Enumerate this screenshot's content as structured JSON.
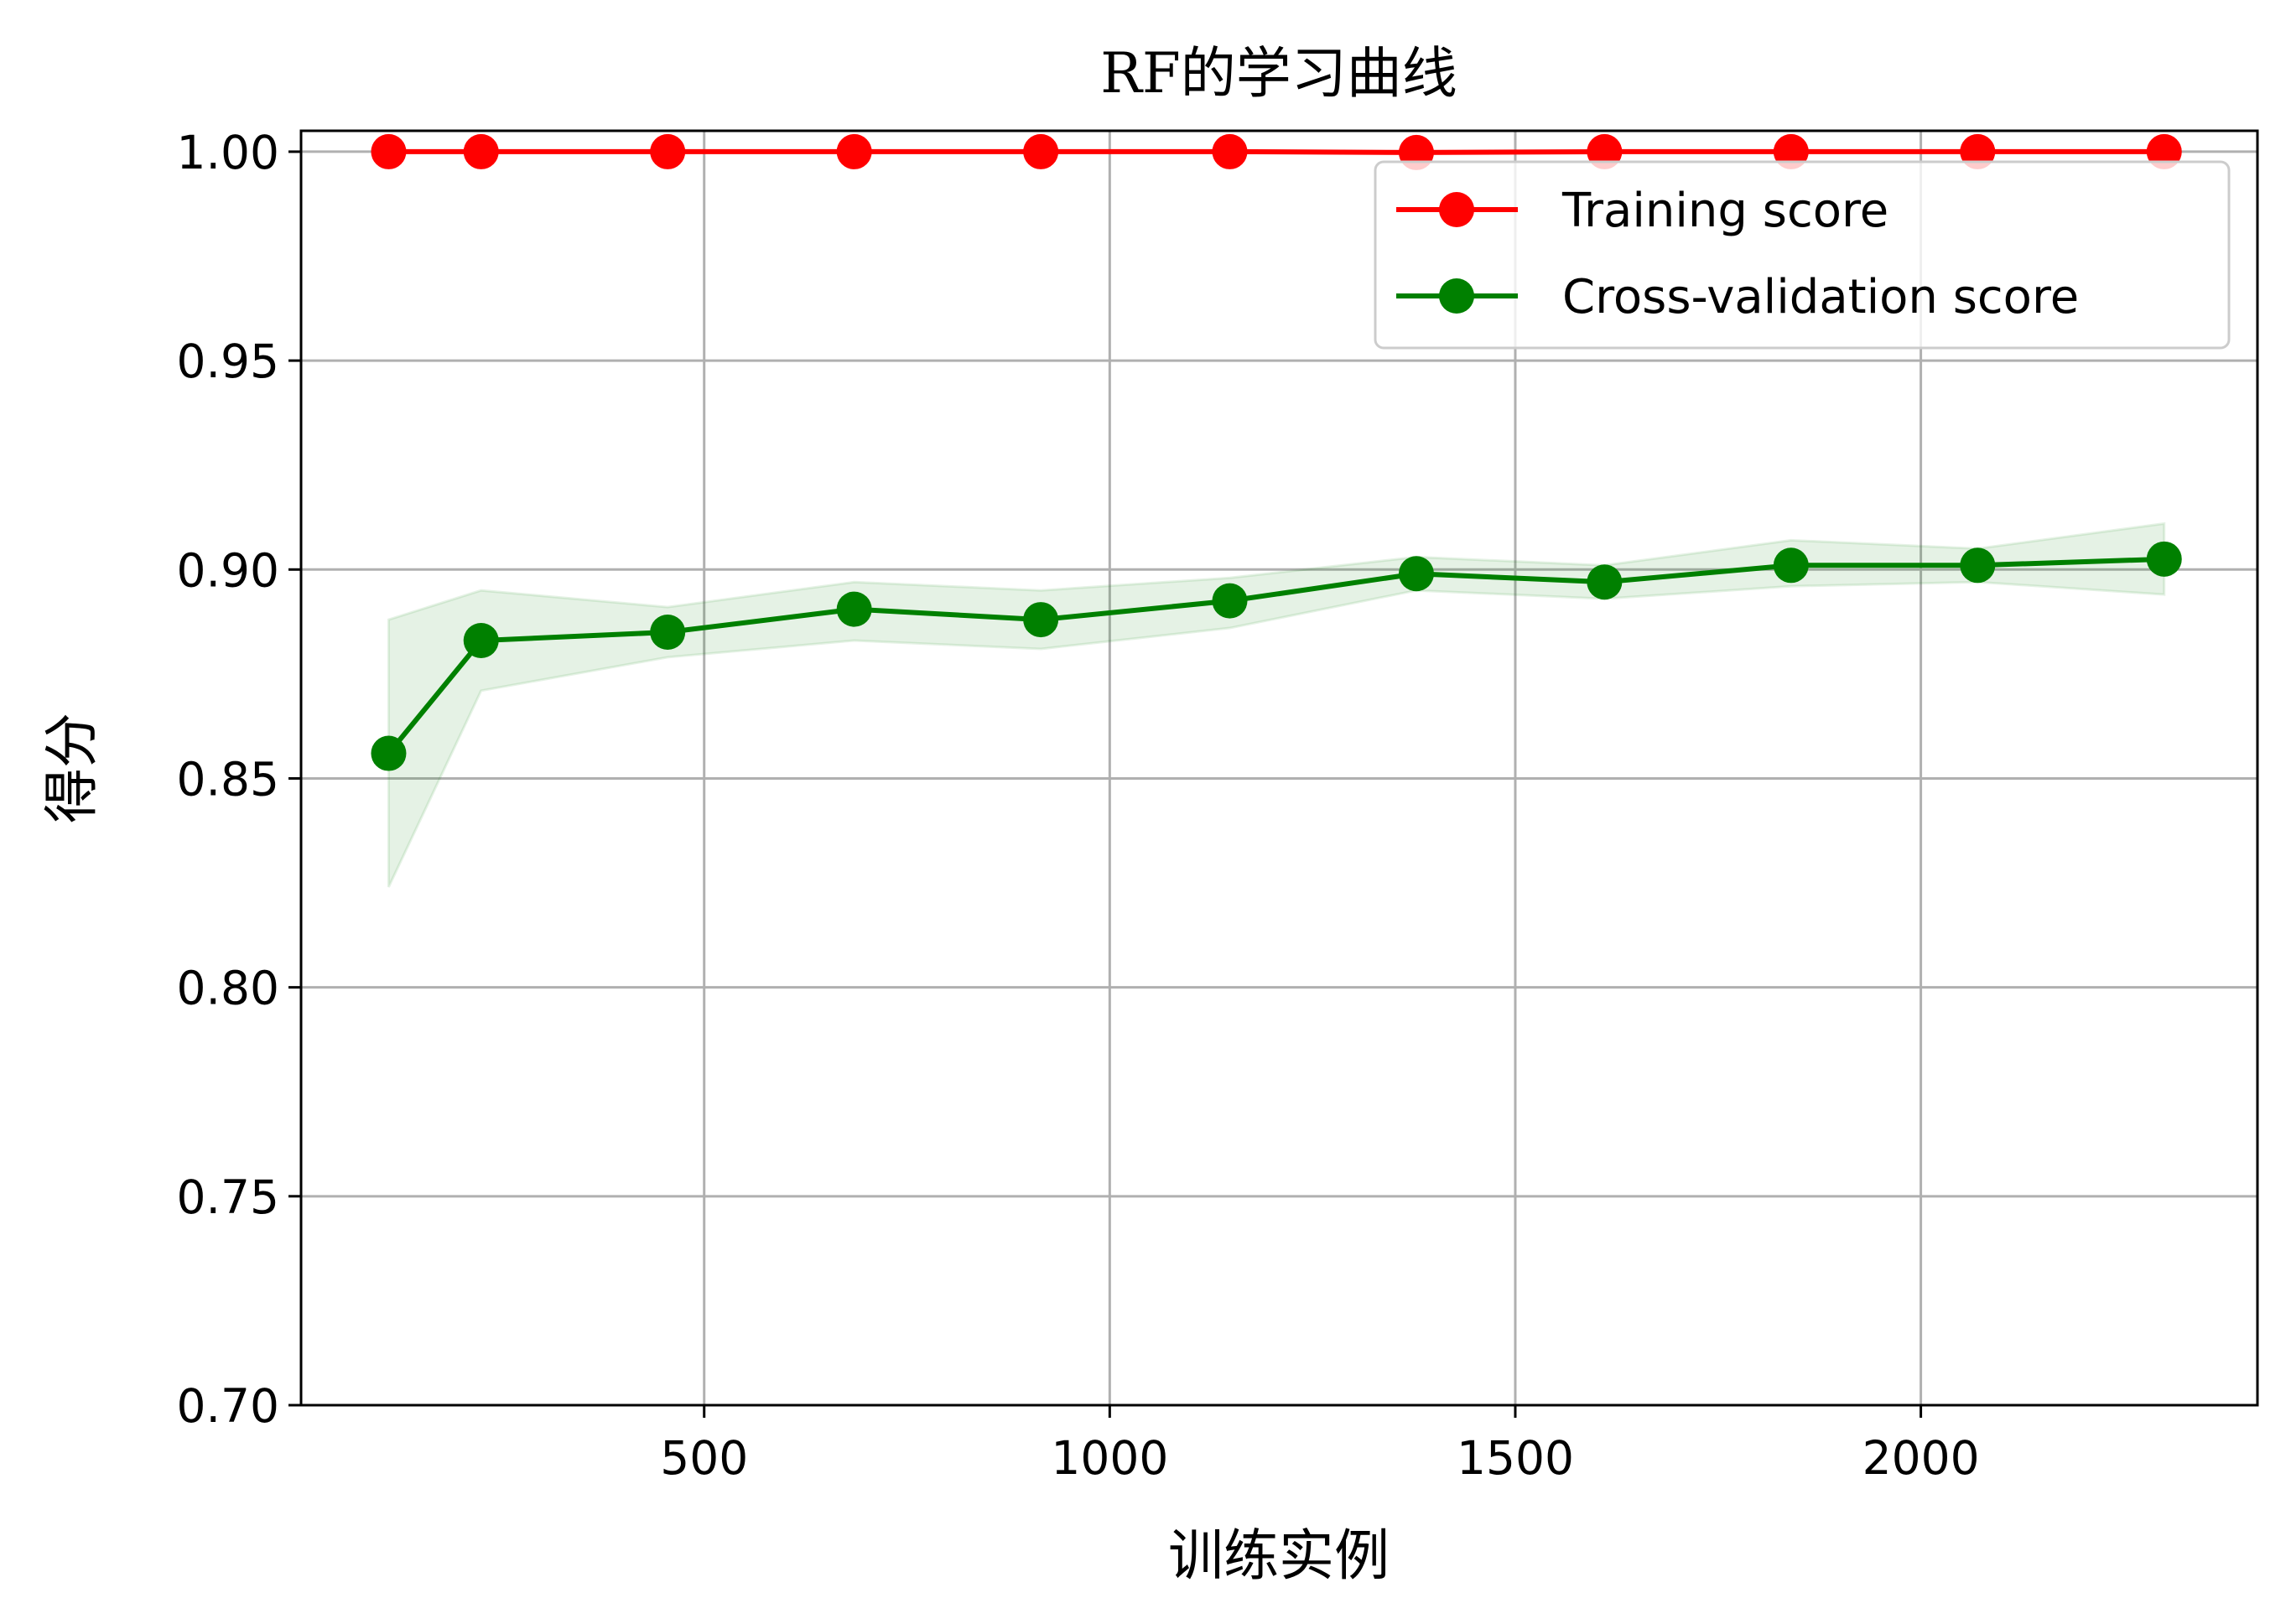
{
  "chart_data": {
    "type": "line",
    "title": "RF的学习曲线",
    "xlabel": "训练实例",
    "ylabel": "得分",
    "grid": true,
    "legend_position": "top-right",
    "xlim": [
      3,
      2415
    ],
    "ylim": [
      1.005,
      0.7
    ],
    "y_inverted": true,
    "x_ticks": [
      500,
      1000,
      1500,
      2000
    ],
    "x_tick_labels": [
      "500",
      "1000",
      "1500",
      "2000"
    ],
    "y_ticks": [
      0.7,
      0.75,
      0.8,
      0.85,
      0.9,
      0.95,
      1.0
    ],
    "y_tick_labels": [
      "0.70",
      "0.75",
      "0.80",
      "0.85",
      "0.90",
      "0.95",
      "1.00"
    ],
    "x": [
      111,
      225,
      455,
      685,
      915,
      1148,
      1378,
      1610,
      1840,
      2070,
      2300
    ],
    "series": [
      {
        "name": "Training score",
        "color": "#ff0000",
        "values": [
          1.0,
          1.0,
          1.0,
          1.0,
          1.0,
          1.0,
          0.9998,
          1.0,
          1.0,
          1.0,
          1.0
        ]
      },
      {
        "name": "Cross-validation score",
        "color": "#008000",
        "values": [
          0.856,
          0.883,
          0.885,
          0.8905,
          0.888,
          0.8925,
          0.899,
          0.897,
          0.901,
          0.901,
          0.9025
        ],
        "band_upper": [
          0.824,
          0.871,
          0.879,
          0.883,
          0.881,
          0.886,
          0.895,
          0.893,
          0.896,
          0.897,
          0.894
        ],
        "band_lower": [
          0.888,
          0.895,
          0.891,
          0.897,
          0.895,
          0.898,
          0.903,
          0.901,
          0.907,
          0.905,
          0.911
        ],
        "band_color": "#008000"
      }
    ]
  }
}
